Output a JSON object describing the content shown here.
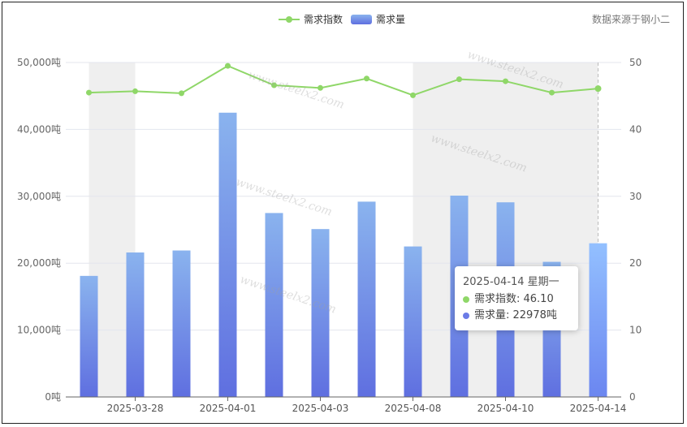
{
  "legend": {
    "index_label": "需求指数",
    "volume_label": "需求量"
  },
  "source": "数据来源于钢小二",
  "tooltip": {
    "title": "2025-04-14 星期一",
    "index_text": "需求指数: 46.10",
    "volume_text": "需求量: 22978吨"
  },
  "watermarks": [
    "www.steelx2.com",
    "www.steelx2.com",
    "www.steelx2.com",
    "www.steelx2.com",
    "www.steelx2.com"
  ],
  "colors": {
    "line": "#8fd768",
    "bar_top": "#8ab3ee",
    "bar_bottom": "#5f6fe0",
    "bar_highlight_top": "#93c0ff",
    "bar_highlight_bottom": "#6b86f0",
    "band": "#efefef",
    "grid": "#e3e6ee"
  },
  "chart_data": {
    "type": "bar",
    "x_dates": [
      "2025-03-27",
      "2025-03-28",
      "2025-03-31",
      "2025-04-01",
      "2025-04-02",
      "2025-04-03",
      "2025-04-07",
      "2025-04-08",
      "2025-04-09",
      "2025-04-10",
      "2025-04-11",
      "2025-04-14"
    ],
    "x_tick_labels": [
      "2025-03-28",
      "2025-04-01",
      "2025-04-03",
      "2025-04-08",
      "2025-04-10",
      "2025-04-14"
    ],
    "series": [
      {
        "name": "需求量",
        "type": "bar",
        "axis": "left",
        "values": [
          18100,
          21600,
          21900,
          42500,
          27500,
          25100,
          29200,
          22500,
          30100,
          29100,
          20200,
          22978
        ]
      },
      {
        "name": "需求指数",
        "type": "line",
        "axis": "right",
        "values": [
          45.5,
          45.7,
          45.4,
          49.5,
          46.6,
          46.2,
          47.6,
          45.1,
          47.5,
          47.2,
          45.5,
          46.1
        ]
      }
    ],
    "y_left": {
      "lim": [
        0,
        50000
      ],
      "tick_labels": [
        "0吨",
        "10,000吨",
        "20,000吨",
        "30,000吨",
        "40,000吨",
        "50,000吨"
      ]
    },
    "y_right": {
      "lim": [
        0,
        50
      ],
      "tick_labels": [
        "0",
        "10",
        "20",
        "30",
        "40",
        "50"
      ]
    },
    "highlight": "2025-04-14",
    "grid": true,
    "legend_position": "top-center"
  }
}
